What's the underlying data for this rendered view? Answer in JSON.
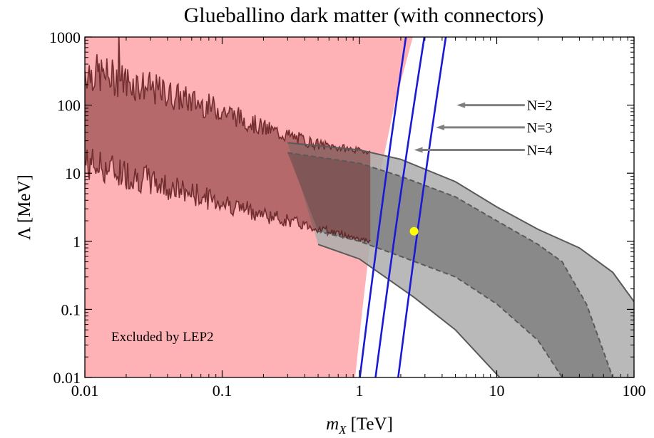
{
  "chart_data": {
    "type": "area",
    "title": "Glueballino dark matter (with connectors)",
    "xlabel_italic": "m",
    "xlabel_sub": "X",
    "xlabel_unit": "[TeV]",
    "ylabel": "Λ [MeV]",
    "x_scale": "log",
    "y_scale": "log",
    "xlim": [
      0.01,
      100
    ],
    "ylim": [
      0.01,
      1000
    ],
    "x_ticks": [
      {
        "value": 0.01,
        "label": "0.01"
      },
      {
        "value": 0.1,
        "label": "0.1"
      },
      {
        "value": 1,
        "label": "1"
      },
      {
        "value": 10,
        "label": "10"
      },
      {
        "value": 100,
        "label": "100"
      }
    ],
    "y_ticks": [
      {
        "value": 0.01,
        "label": "0.01"
      },
      {
        "value": 0.1,
        "label": "0.1"
      },
      {
        "value": 1,
        "label": "1"
      },
      {
        "value": 10,
        "label": "10"
      },
      {
        "value": 100,
        "label": "100"
      },
      {
        "value": 1000,
        "label": "1000"
      }
    ],
    "grid": false,
    "colors": {
      "excluded": "#ffb2b5",
      "outer_band": "#adadad",
      "inner_band": "#7d7d7d",
      "band_edge": "#5a5a5a",
      "noisy_band": "#7a2e2e",
      "n_lines": "#1a1ad6",
      "point": "#ffff00",
      "arrow": "#808080"
    },
    "excluded_region": {
      "label": "Excluded by LEP2",
      "boundary": [
        {
          "x": 0.93,
          "y": 0.01
        },
        {
          "x": 1.05,
          "y": 0.1
        },
        {
          "x": 1.2,
          "y": 1
        },
        {
          "x": 1.42,
          "y": 10
        },
        {
          "x": 1.8,
          "y": 100
        },
        {
          "x": 2.45,
          "y": 1000
        }
      ]
    },
    "outer_band": {
      "upper": [
        {
          "x": 0.3,
          "y": 28
        },
        {
          "x": 1,
          "y": 22
        },
        {
          "x": 2,
          "y": 16
        },
        {
          "x": 5,
          "y": 7.5
        },
        {
          "x": 10,
          "y": 3.2
        },
        {
          "x": 20,
          "y": 1.5
        },
        {
          "x": 40,
          "y": 0.8
        },
        {
          "x": 70,
          "y": 0.35
        },
        {
          "x": 100,
          "y": 0.13
        }
      ],
      "lower": [
        {
          "x": 100,
          "y": 0.01
        },
        {
          "x": 10.5,
          "y": 0.01
        },
        {
          "x": 5,
          "y": 0.05
        },
        {
          "x": 2.5,
          "y": 0.15
        },
        {
          "x": 1,
          "y": 0.55
        },
        {
          "x": 0.5,
          "y": 0.9
        }
      ]
    },
    "inner_band": {
      "upper": [
        {
          "x": 0.3,
          "y": 20
        },
        {
          "x": 1,
          "y": 14
        },
        {
          "x": 2,
          "y": 9
        },
        {
          "x": 5,
          "y": 4.5
        },
        {
          "x": 10,
          "y": 2
        },
        {
          "x": 20,
          "y": 0.9
        },
        {
          "x": 30,
          "y": 0.5
        },
        {
          "x": 45,
          "y": 0.12
        },
        {
          "x": 70,
          "y": 0.01
        }
      ],
      "lower": [
        {
          "x": 30,
          "y": 0.01
        },
        {
          "x": 20,
          "y": 0.035
        },
        {
          "x": 10,
          "y": 0.12
        },
        {
          "x": 5,
          "y": 0.3
        },
        {
          "x": 2,
          "y": 0.6
        },
        {
          "x": 1,
          "y": 1.0
        },
        {
          "x": 0.5,
          "y": 1.4
        }
      ]
    },
    "noisy_band": {
      "x_start": 0.01,
      "x_end": 1.2,
      "upper": [
        {
          "x": 0.01,
          "y": 260
        },
        {
          "x": 0.02,
          "y": 190
        },
        {
          "x": 0.05,
          "y": 110
        },
        {
          "x": 0.1,
          "y": 75
        },
        {
          "x": 0.2,
          "y": 42
        },
        {
          "x": 0.5,
          "y": 25
        },
        {
          "x": 1.2,
          "y": 20
        }
      ],
      "lower": [
        {
          "x": 0.01,
          "y": 16
        },
        {
          "x": 0.02,
          "y": 11
        },
        {
          "x": 0.05,
          "y": 6
        },
        {
          "x": 0.1,
          "y": 4
        },
        {
          "x": 0.2,
          "y": 2.6
        },
        {
          "x": 0.5,
          "y": 1.6
        },
        {
          "x": 1.2,
          "y": 1.0
        }
      ]
    },
    "n_lines": [
      {
        "label": "N=2",
        "x_bottom": 1.9,
        "x_top": 4.3,
        "arrow_tip": {
          "x": 5.1,
          "y": 100
        },
        "arrow_tail": {
          "x": 16,
          "y": 100
        }
      },
      {
        "label": "N=3",
        "x_bottom": 1.3,
        "x_top": 3.0,
        "arrow_tip": {
          "x": 3.6,
          "y": 47
        },
        "arrow_tail": {
          "x": 16,
          "y": 47
        }
      },
      {
        "label": "N=4",
        "x_bottom": 1.0,
        "x_top": 2.2,
        "arrow_tip": {
          "x": 2.5,
          "y": 22
        },
        "arrow_tail": {
          "x": 16,
          "y": 22
        }
      }
    ],
    "point": {
      "x": 2.5,
      "y": 1.4
    }
  }
}
